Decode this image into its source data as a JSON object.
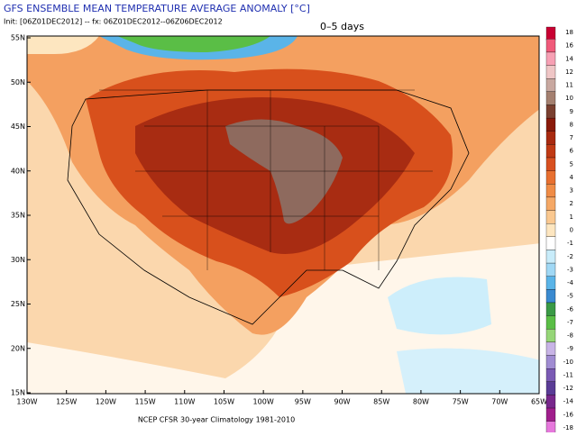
{
  "header": {
    "title": "GFS ENSEMBLE MEAN TEMPERATURE AVERAGE ANOMALY [°C]",
    "init": "Init: [06Z01DEC2012] -- fx: 06Z01DEC2012--06Z06DEC2012",
    "period": "0–5 days"
  },
  "map": {
    "lat_labels": [
      "55N",
      "50N",
      "45N",
      "40N",
      "35N",
      "30N",
      "25N",
      "20N",
      "15N"
    ],
    "lon_labels": [
      "130W",
      "125W",
      "120W",
      "115W",
      "110W",
      "105W",
      "100W",
      "95W",
      "90W",
      "85W",
      "80W",
      "75W",
      "70W",
      "65W"
    ]
  },
  "colorbar": {
    "levels": [
      18,
      16,
      14,
      12,
      11,
      10,
      9,
      8,
      7,
      6,
      5,
      4,
      3,
      2,
      1,
      0,
      -1,
      -2,
      -3,
      -4,
      -5,
      -6,
      -7,
      -8,
      -9,
      -10,
      -11,
      -12,
      -14,
      -16,
      -18
    ],
    "colors": [
      "#c80032",
      "#f05a7a",
      "#f7a0b4",
      "#efc6c6",
      "#c8a8a0",
      "#a48070",
      "#7a4030",
      "#8a1a0a",
      "#a82a10",
      "#c03a14",
      "#d85020",
      "#e87030",
      "#f08c46",
      "#f5a866",
      "#fac890",
      "#fde6c0",
      "#ffffff",
      "#c8ecfa",
      "#a0d8f5",
      "#5ab4e8",
      "#3a8ad0",
      "#3a9a46",
      "#5abe46",
      "#96d678",
      "#c8b4e6",
      "#a08cd2",
      "#7a5ab4",
      "#5a3c96",
      "#78288c",
      "#a01e8c",
      "#e678dc"
    ]
  },
  "footer": {
    "note": "NCEP CFSR 30-year Climatology 1981-2010"
  }
}
